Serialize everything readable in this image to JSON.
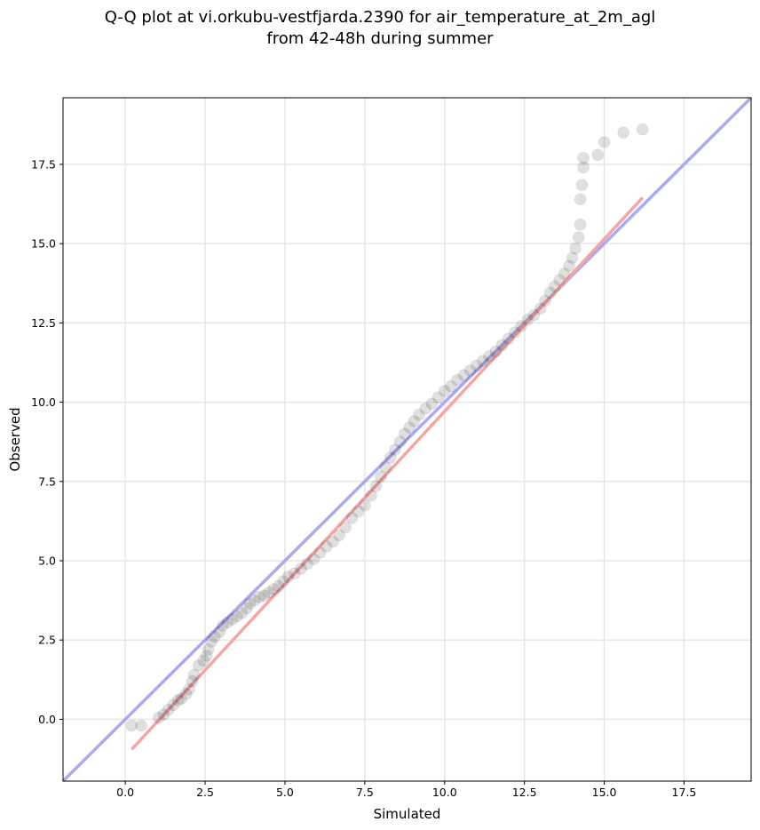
{
  "chart_data": {
    "type": "scatter",
    "title_line1": "Q-Q plot at vi.orkubu-vestfjarda.2390 for air_temperature_at_2m_agl",
    "title_line2": "from 42-48h during summer",
    "xlabel": "Simulated",
    "ylabel": "Observed",
    "xlim": [
      -1.95,
      19.6
    ],
    "ylim": [
      -1.95,
      19.6
    ],
    "xticks": [
      "0.0",
      "2.5",
      "5.0",
      "7.5",
      "10.0",
      "12.5",
      "15.0",
      "17.5"
    ],
    "yticks": [
      "0.0",
      "2.5",
      "5.0",
      "7.5",
      "10.0",
      "12.5",
      "15.0",
      "17.5"
    ],
    "grid": true,
    "reference_line": {
      "name": "1:1",
      "color": "#aaaaee",
      "x": [
        -1.95,
        19.6
      ],
      "y": [
        -1.95,
        19.6
      ]
    },
    "fit_line": {
      "color": "#f4a6a6",
      "x": [
        0.2,
        16.2
      ],
      "y": [
        -0.95,
        16.45
      ]
    },
    "points": [
      [
        0.2,
        -0.2
      ],
      [
        0.5,
        -0.2
      ],
      [
        1.05,
        0.05
      ],
      [
        1.2,
        0.15
      ],
      [
        1.35,
        0.3
      ],
      [
        1.5,
        0.45
      ],
      [
        1.65,
        0.6
      ],
      [
        1.75,
        0.65
      ],
      [
        1.9,
        0.8
      ],
      [
        2.0,
        0.95
      ],
      [
        2.1,
        1.2
      ],
      [
        2.15,
        1.4
      ],
      [
        2.3,
        1.7
      ],
      [
        2.45,
        1.85
      ],
      [
        2.55,
        2.0
      ],
      [
        2.6,
        2.2
      ],
      [
        2.7,
        2.45
      ],
      [
        2.8,
        2.6
      ],
      [
        2.95,
        2.75
      ],
      [
        3.05,
        2.95
      ],
      [
        3.2,
        3.05
      ],
      [
        3.35,
        3.15
      ],
      [
        3.5,
        3.25
      ],
      [
        3.65,
        3.35
      ],
      [
        3.8,
        3.5
      ],
      [
        3.9,
        3.65
      ],
      [
        4.05,
        3.75
      ],
      [
        4.2,
        3.85
      ],
      [
        4.35,
        3.9
      ],
      [
        4.5,
        4.0
      ],
      [
        4.65,
        4.1
      ],
      [
        4.8,
        4.2
      ],
      [
        4.95,
        4.35
      ],
      [
        5.1,
        4.5
      ],
      [
        5.3,
        4.6
      ],
      [
        5.5,
        4.75
      ],
      [
        5.7,
        4.9
      ],
      [
        5.9,
        5.05
      ],
      [
        6.1,
        5.25
      ],
      [
        6.3,
        5.45
      ],
      [
        6.5,
        5.6
      ],
      [
        6.7,
        5.8
      ],
      [
        6.9,
        6.05
      ],
      [
        7.1,
        6.35
      ],
      [
        7.3,
        6.55
      ],
      [
        7.5,
        6.75
      ],
      [
        7.7,
        7.05
      ],
      [
        7.85,
        7.35
      ],
      [
        8.0,
        7.65
      ],
      [
        8.15,
        7.95
      ],
      [
        8.3,
        8.25
      ],
      [
        8.45,
        8.5
      ],
      [
        8.6,
        8.75
      ],
      [
        8.75,
        9.0
      ],
      [
        8.9,
        9.2
      ],
      [
        9.05,
        9.4
      ],
      [
        9.2,
        9.6
      ],
      [
        9.4,
        9.8
      ],
      [
        9.6,
        9.95
      ],
      [
        9.8,
        10.15
      ],
      [
        10.0,
        10.35
      ],
      [
        10.2,
        10.5
      ],
      [
        10.4,
        10.7
      ],
      [
        10.6,
        10.85
      ],
      [
        10.8,
        11.0
      ],
      [
        11.0,
        11.15
      ],
      [
        11.2,
        11.3
      ],
      [
        11.4,
        11.45
      ],
      [
        11.6,
        11.6
      ],
      [
        11.8,
        11.8
      ],
      [
        12.0,
        12.0
      ],
      [
        12.2,
        12.2
      ],
      [
        12.4,
        12.4
      ],
      [
        12.6,
        12.6
      ],
      [
        12.8,
        12.75
      ],
      [
        13.0,
        12.95
      ],
      [
        13.15,
        13.2
      ],
      [
        13.3,
        13.45
      ],
      [
        13.45,
        13.65
      ],
      [
        13.6,
        13.85
      ],
      [
        13.75,
        14.05
      ],
      [
        13.9,
        14.3
      ],
      [
        14.0,
        14.55
      ],
      [
        14.1,
        14.85
      ],
      [
        14.2,
        15.2
      ],
      [
        14.25,
        15.6
      ],
      [
        14.25,
        16.4
      ],
      [
        14.3,
        16.85
      ],
      [
        14.35,
        17.4
      ],
      [
        14.35,
        17.7
      ],
      [
        14.8,
        17.8
      ],
      [
        15.0,
        18.2
      ],
      [
        15.6,
        18.5
      ],
      [
        16.2,
        18.6
      ]
    ]
  }
}
